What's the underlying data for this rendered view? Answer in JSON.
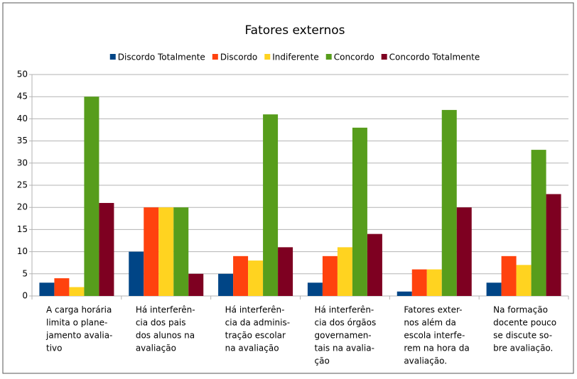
{
  "chart_data": {
    "type": "bar",
    "title": "Fatores externos",
    "categories": [
      [
        "A carga horária",
        "limita o plane-",
        "jamento avalia-",
        "tivo"
      ],
      [
        "Há interferên-",
        "cia dos pais",
        "dos alunos na",
        "avaliação"
      ],
      [
        "Há interferên-",
        "cia da adminis-",
        "tração escolar",
        "na avaliação"
      ],
      [
        "Há interferên-",
        "cia dos órgãos",
        "governamen-",
        "tais na avalia-",
        "ção"
      ],
      [
        "Fatores exter-",
        "nos além da",
        "escola interfe-",
        "rem na hora da",
        "avaliação."
      ],
      [
        "Na formação",
        "docente pouco",
        "se discute so-",
        "bre avaliação."
      ]
    ],
    "series": [
      {
        "name": "Discordo Totalmente",
        "color": "#004586",
        "values": [
          3,
          10,
          5,
          3,
          1,
          3
        ]
      },
      {
        "name": "Discordo",
        "color": "#ff420e",
        "values": [
          4,
          20,
          9,
          9,
          6,
          9
        ]
      },
      {
        "name": "Indiferente",
        "color": "#ffd320",
        "values": [
          2,
          20,
          8,
          11,
          6,
          7
        ]
      },
      {
        "name": "Concordo",
        "color": "#579d1c",
        "values": [
          45,
          20,
          41,
          38,
          42,
          33
        ]
      },
      {
        "name": "Concordo Totalmente",
        "color": "#7e0021",
        "values": [
          21,
          5,
          11,
          14,
          20,
          23
        ]
      }
    ],
    "ylim": [
      0,
      50
    ],
    "yticks": [
      0,
      5,
      10,
      15,
      20,
      25,
      30,
      35,
      40,
      45,
      50
    ],
    "grid": true,
    "legend": "top"
  }
}
